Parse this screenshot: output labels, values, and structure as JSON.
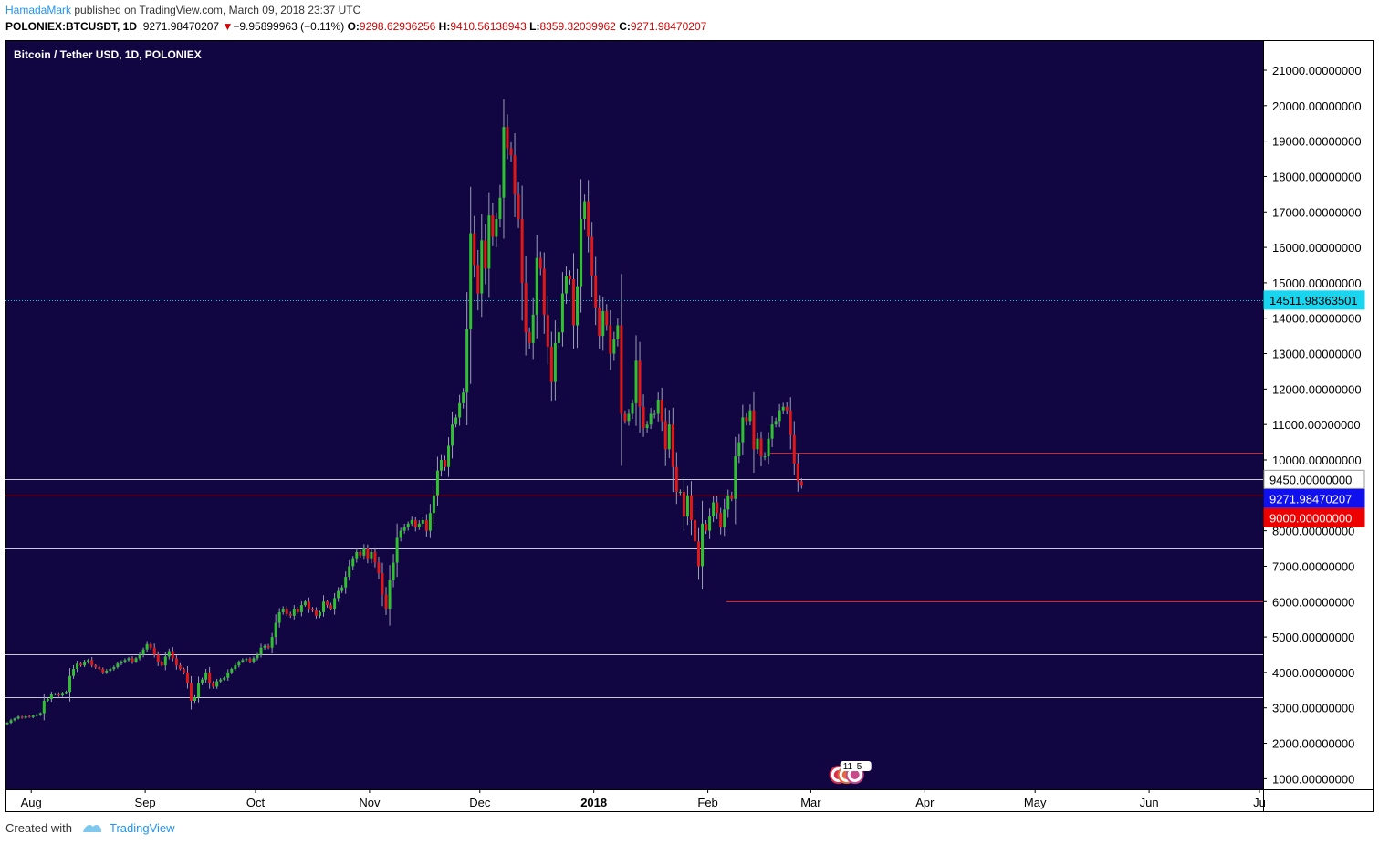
{
  "header": {
    "author": "HamadaMark",
    "published_text": "published on TradingView.com, March 09, 2018 23:37 UTC",
    "symbol": "POLONIEX:BTCUSDT, 1D",
    "last": "9271.98470207",
    "change": "−9.95899963 (−0.11%)",
    "open_label": "O:",
    "open": "9298.62936256",
    "high_label": "H:",
    "high": "9410.56138943",
    "low_label": "L:",
    "low": "8359.32039962",
    "close_label": "C:",
    "close": "9271.98470207"
  },
  "footer": {
    "created_with": "Created with",
    "brand": "TradingView"
  },
  "colors": {
    "background": "#110542",
    "up": "#2fc12f",
    "down": "#e01818",
    "wick": "#9aa0b4",
    "white_line": "#c8c8d8",
    "red_line": "#e02020",
    "cyan_line": "#19c7e3",
    "price_badge_blue": "#1010ee",
    "price_badge_red": "#ee0000",
    "price_badge_cyan": "#19d6f0"
  },
  "chart_data": {
    "type": "candlestick",
    "title": "Bitcoin / Tether USD, 1D, POLONIEX",
    "ylim": [
      700,
      21850
    ],
    "y_ticks": [
      {
        "value": 1000,
        "label": "1000.00000000"
      },
      {
        "value": 2000,
        "label": "2000.00000000"
      },
      {
        "value": 3000,
        "label": "3000.00000000"
      },
      {
        "value": 4000,
        "label": "4000.00000000"
      },
      {
        "value": 5000,
        "label": "5000.00000000"
      },
      {
        "value": 6000,
        "label": "6000.00000000"
      },
      {
        "value": 7000,
        "label": "7000.00000000"
      },
      {
        "value": 8000,
        "label": "8000.00000000"
      },
      {
        "value": 10000,
        "label": "10000.00000000"
      },
      {
        "value": 11000,
        "label": "11000.00000000"
      },
      {
        "value": 12000,
        "label": "12000.00000000"
      },
      {
        "value": 13000,
        "label": "13000.00000000"
      },
      {
        "value": 14000,
        "label": "14000.00000000"
      },
      {
        "value": 15000,
        "label": "15000.00000000"
      },
      {
        "value": 16000,
        "label": "16000.00000000"
      },
      {
        "value": 17000,
        "label": "17000.00000000"
      },
      {
        "value": 18000,
        "label": "18000.00000000"
      },
      {
        "value": 19000,
        "label": "19000.00000000"
      },
      {
        "value": 20000,
        "label": "20000.00000000"
      },
      {
        "value": 21000,
        "label": "21000.00000000"
      }
    ],
    "x_ticks": [
      {
        "date": "2017-08-01",
        "label": "Aug",
        "bold": false
      },
      {
        "date": "2017-09-01",
        "label": "Sep",
        "bold": false
      },
      {
        "date": "2017-10-01",
        "label": "Oct",
        "bold": false
      },
      {
        "date": "2017-11-01",
        "label": "Nov",
        "bold": false
      },
      {
        "date": "2017-12-01",
        "label": "Dec",
        "bold": false
      },
      {
        "date": "2018-01-01",
        "label": "2018",
        "bold": true
      },
      {
        "date": "2018-02-01",
        "label": "Feb",
        "bold": false
      },
      {
        "date": "2018-03-01",
        "label": "Mar",
        "bold": false
      },
      {
        "date": "2018-04-01",
        "label": "Apr",
        "bold": false
      },
      {
        "date": "2018-05-01",
        "label": "May",
        "bold": false
      },
      {
        "date": "2018-06-01",
        "label": "Jun",
        "bold": false
      },
      {
        "date": "2018-07-01",
        "label": "Ju",
        "bold": false
      }
    ],
    "x_range": [
      "2017-07-25",
      "2018-07-02"
    ],
    "horizontal_lines": [
      {
        "value": 3300,
        "color": "white",
        "from": "2017-07-25"
      },
      {
        "value": 4500,
        "color": "white",
        "from": "2017-07-25"
      },
      {
        "value": 7500,
        "color": "white",
        "from": "2017-07-25"
      },
      {
        "value": 9450,
        "color": "white",
        "from": "2017-07-25"
      },
      {
        "value": 9000,
        "color": "red",
        "from": "2017-07-25"
      },
      {
        "value": 10200,
        "color": "red",
        "from": "2018-02-18"
      },
      {
        "value": 6000,
        "color": "red",
        "from": "2018-02-06"
      },
      {
        "value": 14511.98,
        "color": "cyan",
        "from": "2017-07-25",
        "dotted": true
      }
    ],
    "price_badges": [
      {
        "value": 14511.98,
        "label": "14511.98363501",
        "style": "cyan"
      },
      {
        "value": 9450,
        "label": "9450.00000000",
        "style": "white"
      },
      {
        "value": 9271.98,
        "label": "9271.98470207",
        "style": "blue"
      },
      {
        "value": 9000,
        "label": "9000.00000000",
        "style": "red"
      }
    ],
    "events_badge": {
      "date": "2018-03-11",
      "label": "11",
      "count": "5"
    },
    "close_series": {
      "start_date": "2017-07-25",
      "closes": [
        2580,
        2650,
        2700,
        2750,
        2720,
        2760,
        2740,
        2780,
        2800,
        2850,
        3200,
        3250,
        3380,
        3400,
        3350,
        3420,
        3450,
        3900,
        4100,
        4250,
        4200,
        4300,
        4350,
        4200,
        4150,
        4100,
        4000,
        4050,
        4100,
        4150,
        4250,
        4300,
        4350,
        4400,
        4300,
        4400,
        4500,
        4650,
        4800,
        4700,
        4500,
        4300,
        4200,
        4450,
        4600,
        4400,
        4200,
        4100,
        4000,
        3700,
        3200,
        3300,
        3700,
        3800,
        4000,
        3700,
        3600,
        3750,
        3800,
        3850,
        4000,
        4100,
        4200,
        4300,
        4350,
        4380,
        4300,
        4400,
        4500,
        4700,
        4750,
        4700,
        5000,
        5400,
        5700,
        5800,
        5650,
        5600,
        5800,
        5700,
        5900,
        6000,
        5800,
        5750,
        5600,
        5700,
        6000,
        5900,
        5800,
        6100,
        6300,
        6400,
        6700,
        7000,
        7200,
        7400,
        7300,
        7500,
        7200,
        7400,
        7100,
        6800,
        6200,
        5800,
        6600,
        7100,
        7800,
        8000,
        8100,
        8200,
        8300,
        8100,
        8200,
        8300,
        8000,
        8500,
        9000,
        9700,
        10000,
        9800,
        10400,
        11000,
        11200,
        11600,
        11900,
        13700,
        16400,
        15500,
        14700,
        16200,
        15400,
        16900,
        16300,
        16800,
        17400,
        19400,
        18800,
        18600,
        17500,
        16800,
        15000,
        13600,
        13300,
        14100,
        15700,
        15400,
        14100,
        13200,
        12200,
        13300,
        13600,
        14700,
        15200,
        15100,
        13800,
        14900,
        16800,
        17300,
        16300,
        15200,
        14300,
        13500,
        14200,
        13800,
        13000,
        13400,
        13800,
        11300,
        11100,
        11300,
        11600,
        12800,
        11500,
        10900,
        11000,
        11300,
        11300,
        11700,
        11100,
        10300,
        11000,
        9800,
        9100,
        9100,
        8400,
        9000,
        8300,
        7700,
        7000,
        8200,
        8000,
        8400,
        8800,
        8500,
        8100,
        8600,
        9000,
        8900,
        10100,
        10500,
        11200,
        11100,
        11400,
        10300,
        10600,
        10100,
        10100,
        10600,
        11000,
        11100,
        11400,
        11500,
        11400,
        10700,
        9900,
        9400,
        9272
      ]
    }
  }
}
